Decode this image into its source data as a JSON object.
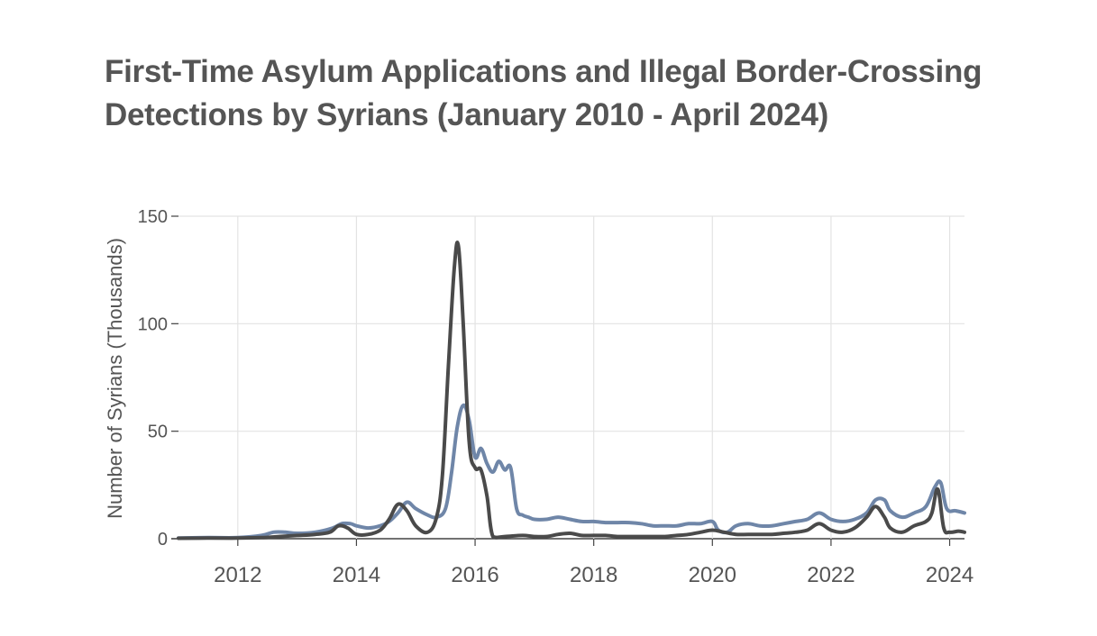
{
  "chart_data": {
    "type": "line",
    "title": "First-Time Asylum Applications and Illegal Border-Crossing Detections by Syrians (January 2010 - April 2024)",
    "xlabel": "",
    "ylabel": "Number of Syrians (Thousands)",
    "ylim": [
      0,
      150
    ],
    "xlim": [
      2011,
      2024.25
    ],
    "yticks": [
      0,
      50,
      100,
      150
    ],
    "xticks": [
      2012,
      2014,
      2016,
      2018,
      2020,
      2022,
      2024
    ],
    "grid": true,
    "legend": "none",
    "series": [
      {
        "color": "#6f86a8",
        "x": [
          2011.0,
          2011.5,
          2012.0,
          2012.4,
          2012.6,
          2012.8,
          2013.0,
          2013.3,
          2013.6,
          2013.75,
          2013.9,
          2014.0,
          2014.2,
          2014.4,
          2014.55,
          2014.7,
          2014.85,
          2015.0,
          2015.2,
          2015.35,
          2015.5,
          2015.6,
          2015.7,
          2015.8,
          2015.9,
          2016.0,
          2016.1,
          2016.2,
          2016.3,
          2016.4,
          2016.5,
          2016.6,
          2016.7,
          2016.8,
          2016.9,
          2017.0,
          2017.2,
          2017.4,
          2017.6,
          2017.8,
          2018.0,
          2018.2,
          2018.4,
          2018.6,
          2018.8,
          2019.0,
          2019.2,
          2019.4,
          2019.6,
          2019.8,
          2020.0,
          2020.1,
          2020.25,
          2020.4,
          2020.6,
          2020.8,
          2021.0,
          2021.2,
          2021.4,
          2021.6,
          2021.8,
          2022.0,
          2022.2,
          2022.4,
          2022.6,
          2022.75,
          2022.9,
          2023.0,
          2023.2,
          2023.4,
          2023.6,
          2023.75,
          2023.85,
          2023.95,
          2024.1,
          2024.25
        ],
        "y": [
          0.3,
          0.5,
          0.5,
          1.5,
          3,
          3,
          2.5,
          3,
          5,
          7,
          7,
          6,
          5,
          6,
          8,
          12,
          17,
          14,
          11,
          10,
          14,
          30,
          52,
          62,
          55,
          38,
          42,
          35,
          31,
          36,
          32,
          33,
          14,
          11,
          10,
          9,
          9,
          10,
          9,
          8,
          8,
          7.5,
          7.5,
          7.5,
          7,
          6,
          6,
          6,
          7,
          7,
          8,
          4,
          3,
          6,
          7,
          6,
          6,
          7,
          8,
          9,
          12,
          9,
          8,
          9,
          12,
          18,
          18,
          13,
          10,
          12,
          15,
          24,
          26,
          14,
          13,
          12
        ]
      },
      {
        "color": "#4a4a4a",
        "x": [
          2011.0,
          2011.5,
          2012.0,
          2012.4,
          2012.7,
          2013.0,
          2013.3,
          2013.55,
          2013.7,
          2013.85,
          2014.0,
          2014.2,
          2014.4,
          2014.55,
          2014.7,
          2014.85,
          2015.0,
          2015.2,
          2015.35,
          2015.45,
          2015.55,
          2015.65,
          2015.72,
          2015.8,
          2015.9,
          2016.0,
          2016.1,
          2016.2,
          2016.3,
          2016.5,
          2016.8,
          2017.0,
          2017.2,
          2017.4,
          2017.6,
          2017.8,
          2018.0,
          2018.2,
          2018.4,
          2018.6,
          2018.8,
          2019.0,
          2019.2,
          2019.4,
          2019.6,
          2019.8,
          2020.0,
          2020.2,
          2020.4,
          2020.6,
          2020.8,
          2021.0,
          2021.2,
          2021.4,
          2021.6,
          2021.8,
          2022.0,
          2022.2,
          2022.4,
          2022.6,
          2022.75,
          2022.9,
          2023.0,
          2023.2,
          2023.4,
          2023.6,
          2023.7,
          2023.8,
          2023.9,
          2024.0,
          2024.15,
          2024.25
        ],
        "y": [
          0.2,
          0.3,
          0.3,
          0.5,
          1,
          1.5,
          2,
          3,
          6,
          5,
          2,
          2,
          4,
          9,
          16,
          13,
          6,
          3,
          10,
          30,
          80,
          126,
          136,
          100,
          45,
          33,
          32,
          20,
          1,
          1,
          1.5,
          1,
          1,
          2,
          2.5,
          1.5,
          1.5,
          1.5,
          1,
          1,
          1,
          1,
          1,
          1.5,
          2,
          3,
          4,
          3,
          2,
          2,
          2,
          2,
          2.5,
          3,
          4,
          7,
          4,
          3,
          5,
          10,
          15,
          10,
          5,
          3,
          6,
          8,
          12,
          23,
          5,
          3,
          3.5,
          3
        ]
      }
    ]
  }
}
